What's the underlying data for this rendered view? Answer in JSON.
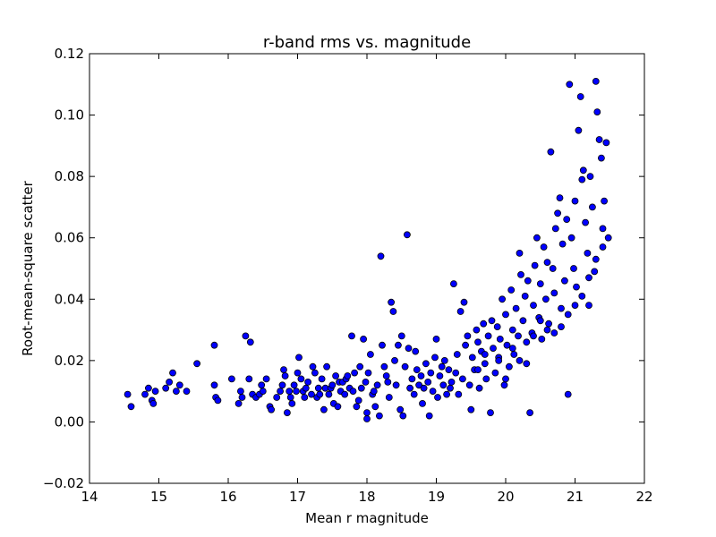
{
  "chart_data": {
    "type": "scatter",
    "title": "r-band rms vs. magnitude",
    "xlabel": "Mean r magnitude",
    "ylabel": "Root-mean-square scatter",
    "xlim": [
      14,
      22
    ],
    "ylim": [
      -0.02,
      0.12
    ],
    "xticks": [
      14,
      15,
      16,
      17,
      18,
      19,
      20,
      21,
      22
    ],
    "yticks": [
      -0.02,
      0.0,
      0.02,
      0.04,
      0.06,
      0.08,
      0.1,
      0.12
    ],
    "xtick_labels": [
      "14",
      "15",
      "16",
      "17",
      "18",
      "19",
      "20",
      "21",
      "22"
    ],
    "ytick_labels": [
      "−0.02",
      "0.00",
      "0.02",
      "0.04",
      "0.06",
      "0.08",
      "0.10",
      "0.12"
    ],
    "grid": false,
    "colors": {
      "marker_fill": "#0000ff",
      "marker_edge": "#000000",
      "axes": "#000000"
    },
    "series": [
      {
        "points": [
          [
            14.55,
            0.009
          ],
          [
            14.6,
            0.005
          ],
          [
            14.8,
            0.009
          ],
          [
            14.85,
            0.011
          ],
          [
            14.9,
            0.007
          ],
          [
            14.92,
            0.006
          ],
          [
            14.95,
            0.01
          ],
          [
            15.1,
            0.011
          ],
          [
            15.15,
            0.013
          ],
          [
            15.2,
            0.016
          ],
          [
            15.25,
            0.01
          ],
          [
            15.3,
            0.012
          ],
          [
            15.4,
            0.01
          ],
          [
            15.55,
            0.019
          ],
          [
            15.8,
            0.025
          ],
          [
            15.8,
            0.012
          ],
          [
            15.82,
            0.008
          ],
          [
            15.85,
            0.007
          ],
          [
            16.05,
            0.014
          ],
          [
            16.15,
            0.006
          ],
          [
            16.18,
            0.01
          ],
          [
            16.2,
            0.008
          ],
          [
            16.25,
            0.028
          ],
          [
            16.3,
            0.014
          ],
          [
            16.32,
            0.026
          ],
          [
            16.35,
            0.009
          ],
          [
            16.4,
            0.008
          ],
          [
            16.45,
            0.009
          ],
          [
            16.48,
            0.012
          ],
          [
            16.5,
            0.01
          ],
          [
            16.55,
            0.014
          ],
          [
            16.6,
            0.005
          ],
          [
            16.62,
            0.004
          ],
          [
            16.7,
            0.008
          ],
          [
            16.75,
            0.01
          ],
          [
            16.78,
            0.012
          ],
          [
            16.8,
            0.017
          ],
          [
            16.82,
            0.015
          ],
          [
            16.85,
            0.003
          ],
          [
            16.88,
            0.01
          ],
          [
            16.9,
            0.008
          ],
          [
            16.92,
            0.006
          ],
          [
            16.95,
            0.012
          ],
          [
            16.98,
            0.01
          ],
          [
            17.0,
            0.016
          ],
          [
            17.02,
            0.021
          ],
          [
            17.05,
            0.014
          ],
          [
            17.08,
            0.01
          ],
          [
            17.1,
            0.008
          ],
          [
            17.12,
            0.011
          ],
          [
            17.15,
            0.013
          ],
          [
            17.2,
            0.009
          ],
          [
            17.22,
            0.018
          ],
          [
            17.25,
            0.016
          ],
          [
            17.28,
            0.008
          ],
          [
            17.3,
            0.011
          ],
          [
            17.32,
            0.009
          ],
          [
            17.35,
            0.014
          ],
          [
            17.38,
            0.004
          ],
          [
            17.4,
            0.011
          ],
          [
            17.42,
            0.018
          ],
          [
            17.45,
            0.009
          ],
          [
            17.48,
            0.011
          ],
          [
            17.5,
            0.012
          ],
          [
            17.52,
            0.006
          ],
          [
            17.55,
            0.015
          ],
          [
            17.58,
            0.005
          ],
          [
            17.6,
            0.013
          ],
          [
            17.62,
            0.01
          ],
          [
            17.65,
            0.013
          ],
          [
            17.68,
            0.009
          ],
          [
            17.7,
            0.014
          ],
          [
            17.72,
            0.015
          ],
          [
            17.75,
            0.011
          ],
          [
            17.78,
            0.028
          ],
          [
            17.8,
            0.01
          ],
          [
            17.82,
            0.016
          ],
          [
            17.85,
            0.005
          ],
          [
            17.88,
            0.007
          ],
          [
            17.9,
            0.018
          ],
          [
            17.92,
            0.011
          ],
          [
            17.95,
            0.027
          ],
          [
            17.98,
            0.013
          ],
          [
            18.0,
            0.003
          ],
          [
            18.0,
            0.001
          ],
          [
            18.02,
            0.016
          ],
          [
            18.05,
            0.022
          ],
          [
            18.08,
            0.009
          ],
          [
            18.1,
            0.01
          ],
          [
            18.12,
            0.005
          ],
          [
            18.15,
            0.012
          ],
          [
            18.18,
            0.002
          ],
          [
            18.2,
            0.054
          ],
          [
            18.22,
            0.025
          ],
          [
            18.25,
            0.018
          ],
          [
            18.28,
            0.015
          ],
          [
            18.3,
            0.013
          ],
          [
            18.32,
            0.008
          ],
          [
            18.35,
            0.039
          ],
          [
            18.38,
            0.036
          ],
          [
            18.4,
            0.02
          ],
          [
            18.42,
            0.012
          ],
          [
            18.45,
            0.025
          ],
          [
            18.48,
            0.004
          ],
          [
            18.5,
            0.028
          ],
          [
            18.52,
            0.002
          ],
          [
            18.55,
            0.018
          ],
          [
            18.58,
            0.061
          ],
          [
            18.6,
            0.024
          ],
          [
            18.62,
            0.011
          ],
          [
            18.65,
            0.014
          ],
          [
            18.68,
            0.009
          ],
          [
            18.7,
            0.023
          ],
          [
            18.72,
            0.017
          ],
          [
            18.75,
            0.012
          ],
          [
            18.78,
            0.015
          ],
          [
            18.8,
            0.006
          ],
          [
            18.82,
            0.011
          ],
          [
            18.85,
            0.019
          ],
          [
            18.88,
            0.013
          ],
          [
            18.9,
            0.002
          ],
          [
            18.92,
            0.016
          ],
          [
            18.95,
            0.01
          ],
          [
            18.98,
            0.021
          ],
          [
            19.0,
            0.027
          ],
          [
            19.02,
            0.008
          ],
          [
            19.05,
            0.015
          ],
          [
            19.08,
            0.018
          ],
          [
            19.1,
            0.012
          ],
          [
            19.12,
            0.02
          ],
          [
            19.15,
            0.009
          ],
          [
            19.18,
            0.017
          ],
          [
            19.2,
            0.011
          ],
          [
            19.22,
            0.013
          ],
          [
            19.25,
            0.045
          ],
          [
            19.28,
            0.016
          ],
          [
            19.3,
            0.022
          ],
          [
            19.32,
            0.009
          ],
          [
            19.35,
            0.036
          ],
          [
            19.38,
            0.014
          ],
          [
            19.4,
            0.039
          ],
          [
            19.42,
            0.025
          ],
          [
            19.45,
            0.028
          ],
          [
            19.48,
            0.012
          ],
          [
            19.5,
            0.004
          ],
          [
            19.52,
            0.021
          ],
          [
            19.55,
            0.017
          ],
          [
            19.58,
            0.03
          ],
          [
            19.6,
            0.026
          ],
          [
            19.62,
            0.011
          ],
          [
            19.65,
            0.023
          ],
          [
            19.68,
            0.032
          ],
          [
            19.7,
            0.019
          ],
          [
            19.72,
            0.014
          ],
          [
            19.75,
            0.028
          ],
          [
            19.78,
            0.003
          ],
          [
            19.8,
            0.033
          ],
          [
            19.82,
            0.024
          ],
          [
            19.85,
            0.016
          ],
          [
            19.88,
            0.031
          ],
          [
            19.9,
            0.021
          ],
          [
            19.92,
            0.027
          ],
          [
            19.95,
            0.04
          ],
          [
            19.98,
            0.012
          ],
          [
            20.0,
            0.035
          ],
          [
            20.02,
            0.025
          ],
          [
            20.05,
            0.018
          ],
          [
            20.08,
            0.043
          ],
          [
            20.1,
            0.03
          ],
          [
            20.12,
            0.022
          ],
          [
            20.15,
            0.037
          ],
          [
            20.18,
            0.028
          ],
          [
            20.2,
            0.055
          ],
          [
            20.22,
            0.048
          ],
          [
            20.25,
            0.033
          ],
          [
            20.28,
            0.041
          ],
          [
            20.3,
            0.026
          ],
          [
            20.32,
            0.046
          ],
          [
            20.35,
            0.003
          ],
          [
            20.38,
            0.029
          ],
          [
            20.4,
            0.038
          ],
          [
            20.42,
            0.051
          ],
          [
            20.45,
            0.06
          ],
          [
            20.48,
            0.034
          ],
          [
            20.5,
            0.045
          ],
          [
            20.52,
            0.027
          ],
          [
            20.55,
            0.057
          ],
          [
            20.58,
            0.04
          ],
          [
            20.6,
            0.052
          ],
          [
            20.62,
            0.032
          ],
          [
            20.65,
            0.088
          ],
          [
            20.68,
            0.05
          ],
          [
            20.7,
            0.042
          ],
          [
            20.72,
            0.063
          ],
          [
            20.75,
            0.068
          ],
          [
            20.78,
            0.073
          ],
          [
            20.8,
            0.037
          ],
          [
            20.82,
            0.058
          ],
          [
            20.85,
            0.046
          ],
          [
            20.88,
            0.066
          ],
          [
            20.9,
            0.009
          ],
          [
            20.92,
            0.11
          ],
          [
            20.95,
            0.06
          ],
          [
            20.98,
            0.05
          ],
          [
            21.0,
            0.072
          ],
          [
            21.02,
            0.044
          ],
          [
            21.05,
            0.095
          ],
          [
            21.08,
            0.106
          ],
          [
            21.1,
            0.079
          ],
          [
            21.12,
            0.082
          ],
          [
            21.15,
            0.065
          ],
          [
            21.18,
            0.055
          ],
          [
            21.2,
            0.038
          ],
          [
            21.22,
            0.08
          ],
          [
            21.25,
            0.07
          ],
          [
            21.28,
            0.049
          ],
          [
            21.3,
            0.111
          ],
          [
            21.32,
            0.101
          ],
          [
            21.35,
            0.092
          ],
          [
            21.38,
            0.086
          ],
          [
            21.4,
            0.063
          ],
          [
            21.42,
            0.072
          ],
          [
            21.45,
            0.091
          ],
          [
            21.48,
            0.06
          ],
          [
            19.6,
            0.017
          ],
          [
            19.7,
            0.022
          ],
          [
            19.9,
            0.02
          ],
          [
            20.0,
            0.014
          ],
          [
            20.1,
            0.024
          ],
          [
            20.2,
            0.02
          ],
          [
            20.3,
            0.019
          ],
          [
            20.4,
            0.028
          ],
          [
            20.5,
            0.033
          ],
          [
            20.6,
            0.03
          ],
          [
            20.7,
            0.029
          ],
          [
            20.8,
            0.031
          ],
          [
            20.9,
            0.035
          ],
          [
            21.0,
            0.038
          ],
          [
            21.1,
            0.041
          ],
          [
            21.2,
            0.047
          ],
          [
            21.3,
            0.053
          ],
          [
            21.4,
            0.057
          ]
        ]
      }
    ]
  }
}
